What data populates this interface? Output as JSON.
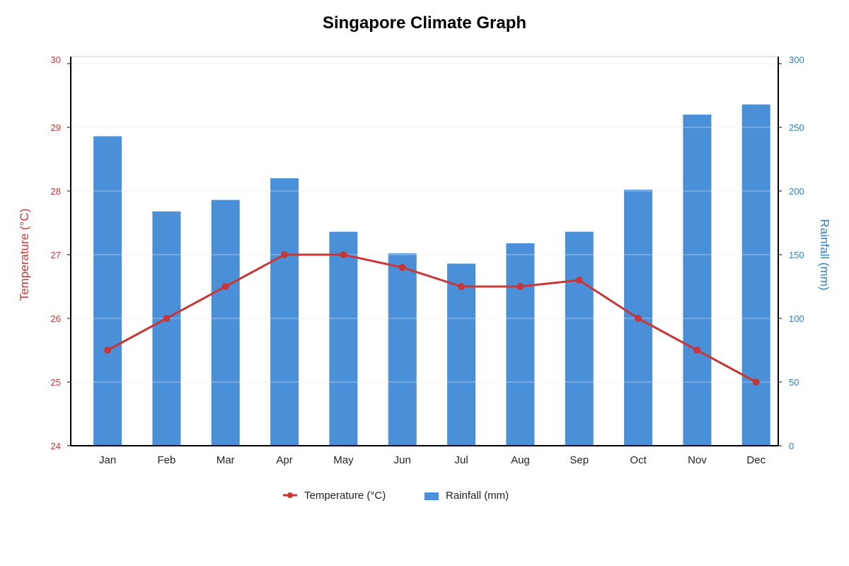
{
  "chart_data": {
    "type": "bar",
    "title": "Singapore Climate Graph",
    "categories": [
      "Jan",
      "Feb",
      "Mar",
      "Apr",
      "May",
      "Jun",
      "Jul",
      "Aug",
      "Sep",
      "Oct",
      "Nov",
      "Dec"
    ],
    "series": [
      {
        "name": "Rainfall (mm)",
        "type": "bar",
        "axis": "right",
        "color": "#4a90d9",
        "values": [
          243,
          184,
          193,
          210,
          168,
          151,
          143,
          159,
          168,
          201,
          260,
          268
        ]
      },
      {
        "name": "Temperature (°C)",
        "type": "line",
        "axis": "left",
        "color": "#c83737",
        "values": [
          25.5,
          26.0,
          26.5,
          27.0,
          27.0,
          26.8,
          26.5,
          26.5,
          26.6,
          26.0,
          25.5,
          25.0
        ]
      }
    ],
    "y_left": {
      "label": "Temperature (°C)",
      "range": [
        24,
        30
      ],
      "ticks": [
        24,
        25,
        26,
        27,
        28,
        29,
        30
      ],
      "color": "#c83737"
    },
    "y_right": {
      "label": "Rainfall (mm)",
      "range": [
        0,
        300
      ],
      "ticks": [
        0,
        50,
        100,
        150,
        200,
        250,
        300
      ],
      "color": "#2f7fc1"
    },
    "grid": true,
    "legend": "bottom-center"
  }
}
